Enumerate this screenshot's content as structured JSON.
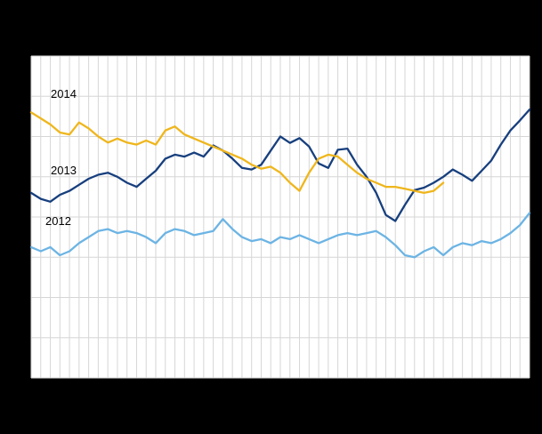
{
  "chart": {
    "background_color": "#000000",
    "plot_background_color": "#ffffff",
    "grid_color": "#d6d6d6",
    "label_color": "#000000"
  },
  "chart_data": {
    "type": "line",
    "title": "",
    "xlabel": "",
    "ylabel": "",
    "x_unit": "week",
    "x": [
      1,
      2,
      3,
      4,
      5,
      6,
      7,
      8,
      9,
      10,
      11,
      12,
      13,
      14,
      15,
      16,
      17,
      18,
      19,
      20,
      21,
      22,
      23,
      24,
      25,
      26,
      27,
      28,
      29,
      30,
      31,
      32,
      33,
      34,
      35,
      36,
      37,
      38,
      39,
      40,
      41,
      42,
      43,
      44,
      45,
      46,
      47,
      48,
      49,
      50,
      51,
      52,
      53
    ],
    "ylim": [
      0,
      80
    ],
    "y_gridline_step": 10,
    "grid": "on",
    "legend_position": "inline-start-of-line",
    "series": [
      {
        "name": "2014",
        "color": "#efb61c",
        "values": [
          66,
          64.5,
          63,
          61,
          60.5,
          63.5,
          62,
          60,
          58.5,
          59.5,
          58.5,
          58,
          59,
          58,
          61.5,
          62.5,
          60.5,
          59.5,
          58.5,
          57.5,
          56.5,
          55.5,
          54.5,
          53,
          52,
          52.5,
          51,
          48.5,
          46.5,
          51,
          54.5,
          55.5,
          55,
          53,
          51,
          49.5,
          48.5,
          47.5,
          47.5,
          47,
          46.5,
          46,
          46.5,
          48.5
        ]
      },
      {
        "name": "2013",
        "color": "#173f7e",
        "values": [
          46,
          44.5,
          43.8,
          45.5,
          46.5,
          48,
          49.5,
          50.5,
          51,
          50,
          48.5,
          47.5,
          49.5,
          51.5,
          54.5,
          55.5,
          55,
          56,
          55,
          57.8,
          56.5,
          54.5,
          52.2,
          51.8,
          53,
          56.5,
          60,
          58.4,
          59.6,
          57.5,
          53.3,
          52.2,
          56.7,
          57,
          53,
          50,
          46,
          40.5,
          39,
          43,
          46.7,
          47.3,
          48.5,
          50,
          51.8,
          50.5,
          49,
          51.5,
          54,
          58,
          61.5,
          64,
          66.7
        ]
      },
      {
        "name": "2012",
        "color": "#6cb4e4",
        "values": [
          32.5,
          31.5,
          32.5,
          30.5,
          31.5,
          33.5,
          35,
          36.5,
          37,
          36,
          36.5,
          36,
          35,
          33.5,
          36,
          37,
          36.5,
          35.5,
          36,
          36.5,
          39.5,
          37,
          35,
          34,
          34.5,
          33.5,
          35,
          34.5,
          35.5,
          34.5,
          33.5,
          34.5,
          35.5,
          36,
          35.5,
          36,
          36.5,
          35,
          33,
          30.5,
          30,
          31.5,
          32.5,
          30.5,
          32.5,
          33.5,
          33,
          34,
          33.5,
          34.5,
          36,
          38,
          41
        ]
      }
    ]
  }
}
